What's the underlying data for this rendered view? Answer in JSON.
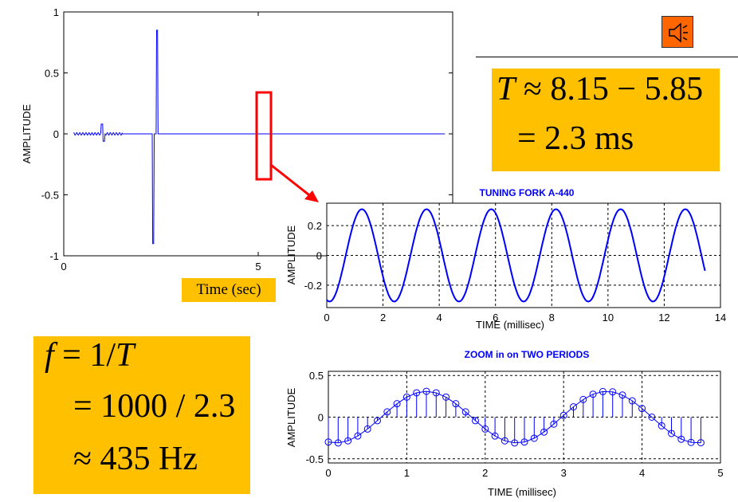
{
  "chart_data": [
    {
      "type": "line",
      "title": "",
      "xlabel": "Time (sec)",
      "ylabel": "AMPLITUDE",
      "xlim": [
        0,
        10
      ],
      "ylim": [
        -1,
        1
      ],
      "xticks": [
        "0",
        "5"
      ],
      "yticks": [
        "-1",
        "-0.5",
        "0",
        "0.5",
        "1"
      ],
      "grid": false,
      "signal": {
        "onset_sec": 1.5,
        "peak_amplitude": 0.85,
        "decay_to": 0.12,
        "end_sec": 9.8
      }
    },
    {
      "type": "line",
      "title": "TUNING FORK   A-440",
      "xlabel": "TIME   (millisec)",
      "ylabel": "AMPLITUDE",
      "xlim": [
        0,
        14
      ],
      "ylim": [
        -0.35,
        0.35
      ],
      "xticks": [
        "0",
        "2",
        "4",
        "6",
        "8",
        "10",
        "12",
        "14"
      ],
      "yticks": [
        "-0.2",
        "0",
        "0.2"
      ],
      "grid": true,
      "signal": {
        "amplitude": 0.31,
        "period_ms": 2.3,
        "first_peak_ms": 1.25,
        "end_ms": 13.5
      }
    },
    {
      "type": "stem",
      "title": "ZOOM in on TWO PERIODS",
      "xlabel": "TIME   (millisec)",
      "ylabel": "AMPLITUDE",
      "xlim": [
        0,
        5
      ],
      "ylim": [
        -0.55,
        0.55
      ],
      "xticks": [
        "0",
        "1",
        "2",
        "3",
        "4",
        "5"
      ],
      "yticks": [
        "-0.5",
        "0",
        "0.5"
      ],
      "grid": true,
      "signal": {
        "amplitude": 0.31,
        "period_ms": 2.3,
        "first_peak_ms": 1.25,
        "sample_step_ms": 0.125,
        "start_ms": 0,
        "end_ms": 4.85
      }
    }
  ],
  "equations": {
    "period_line1": {
      "lhs": "T",
      "rhs": "≈ 8.15 − 5.85"
    },
    "period_line2": "= 2.3 ms",
    "freq_line1": {
      "lhs": "f",
      "rhs_pre": "= 1/",
      "rhs_var": "T"
    },
    "freq_line2": "= 1000 / 2.3",
    "freq_line3": "≈ 435 Hz"
  },
  "colors": {
    "signal": "#0000ff",
    "highlight_box": "#ff0000",
    "label_bg": "#ffc000",
    "speaker": "#ff6600"
  },
  "icons": {
    "speaker": "speaker-icon"
  }
}
